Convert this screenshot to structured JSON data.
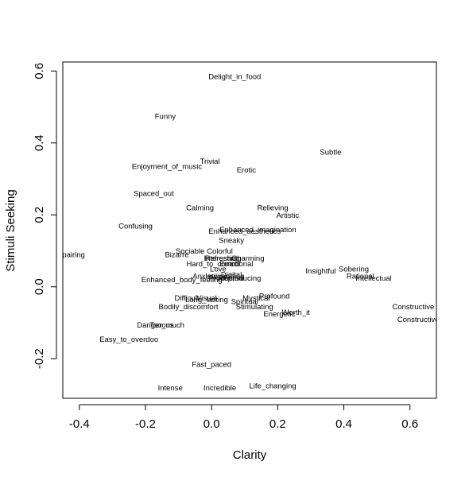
{
  "chart_data": {
    "type": "scatter",
    "title": "",
    "xlabel": "Clarity",
    "ylabel": "Stimuli Seeking",
    "xlim": [
      -0.45,
      0.68
    ],
    "ylim": [
      -0.31,
      0.625
    ],
    "xticks": [
      -0.4,
      -0.2,
      0.0,
      0.2,
      0.4,
      0.6
    ],
    "yticks": [
      -0.2,
      0.0,
      0.2,
      0.4,
      0.6
    ],
    "xtick_labels": [
      "-0.4",
      "-0.2",
      "0.0",
      "0.2",
      "0.4",
      "0.6"
    ],
    "ytick_labels": [
      "-0.2",
      "0.0",
      "0.2",
      "0.4",
      "0.6"
    ],
    "grid": false,
    "points": [
      {
        "label": "Delight_in_food",
        "x": 0.07,
        "y": 0.585
      },
      {
        "label": "Funny",
        "x": -0.14,
        "y": 0.475
      },
      {
        "label": "Subtle",
        "x": 0.36,
        "y": 0.375
      },
      {
        "label": "Trivial",
        "x": -0.005,
        "y": 0.35
      },
      {
        "label": "Enjoyment_of_music",
        "x": -0.135,
        "y": 0.335
      },
      {
        "label": "Erotic",
        "x": 0.105,
        "y": 0.325
      },
      {
        "label": "Spaced_out",
        "x": -0.175,
        "y": 0.26
      },
      {
        "label": "Calming",
        "x": -0.035,
        "y": 0.22
      },
      {
        "label": "Relieving",
        "x": 0.185,
        "y": 0.22
      },
      {
        "label": "Artistic",
        "x": 0.23,
        "y": 0.2
      },
      {
        "label": "Confusing",
        "x": -0.23,
        "y": 0.17
      },
      {
        "label": "Enhanced_imagination",
        "x": 0.14,
        "y": 0.16
      },
      {
        "label": "Enhanced_aesthetics",
        "x": 0.1,
        "y": 0.155
      },
      {
        "label": "Sneaky",
        "x": 0.06,
        "y": 0.13
      },
      {
        "label": "Sociable",
        "x": -0.065,
        "y": 0.1
      },
      {
        "label": "Colorful",
        "x": 0.025,
        "y": 0.1
      },
      {
        "label": "Bizarre",
        "x": -0.105,
        "y": 0.09
      },
      {
        "label": "Impairing",
        "x": -0.43,
        "y": 0.09
      },
      {
        "label": "Interesting",
        "x": 0.03,
        "y": 0.08
      },
      {
        "label": "Refreshing",
        "x": 0.035,
        "y": 0.08
      },
      {
        "label": "Charming",
        "x": 0.11,
        "y": 0.08
      },
      {
        "label": "Hard_to_control",
        "x": 0.005,
        "y": 0.065
      },
      {
        "label": "Emotional",
        "x": 0.075,
        "y": 0.065
      },
      {
        "label": "Love",
        "x": 0.02,
        "y": 0.05
      },
      {
        "label": "Insightful",
        "x": 0.33,
        "y": 0.045
      },
      {
        "label": "Sobering",
        "x": 0.43,
        "y": 0.05
      },
      {
        "label": "Rational",
        "x": 0.45,
        "y": 0.03
      },
      {
        "label": "Intellectual",
        "x": 0.49,
        "y": 0.025
      },
      {
        "label": "Digital",
        "x": 0.06,
        "y": 0.035
      },
      {
        "label": "Invigorating",
        "x": 0.04,
        "y": 0.03
      },
      {
        "label": "Anxiety",
        "x": -0.02,
        "y": 0.03
      },
      {
        "label": "Productive",
        "x": 0.045,
        "y": 0.025
      },
      {
        "label": "Reproducing",
        "x": 0.085,
        "y": 0.025
      },
      {
        "label": "Enhanced_body_feeling",
        "x": -0.09,
        "y": 0.02
      },
      {
        "label": "Difficult",
        "x": -0.075,
        "y": -0.03
      },
      {
        "label": "Visual",
        "x": -0.015,
        "y": -0.03
      },
      {
        "label": "Long_lasting",
        "x": -0.015,
        "y": -0.035
      },
      {
        "label": "Mystical",
        "x": 0.135,
        "y": -0.03
      },
      {
        "label": "Profound",
        "x": 0.19,
        "y": -0.025
      },
      {
        "label": "Spiritual",
        "x": 0.1,
        "y": -0.04
      },
      {
        "label": "Bodily_discomfort",
        "x": -0.07,
        "y": -0.055
      },
      {
        "label": "Stimulating",
        "x": 0.13,
        "y": -0.055
      },
      {
        "label": "Worth_it",
        "x": 0.255,
        "y": -0.07
      },
      {
        "label": "Energetic",
        "x": 0.205,
        "y": -0.075
      },
      {
        "label": "Constructive",
        "x": 0.61,
        "y": -0.055
      },
      {
        "label": "Constructive",
        "x": 0.625,
        "y": -0.09
      },
      {
        "label": "Dangerous",
        "x": -0.17,
        "y": -0.105
      },
      {
        "label": "Too_much",
        "x": -0.135,
        "y": -0.105
      },
      {
        "label": "Easy_to_overdoo",
        "x": -0.25,
        "y": -0.145
      },
      {
        "label": "Fast_paced",
        "x": 0.0,
        "y": -0.215
      },
      {
        "label": "Intense",
        "x": -0.125,
        "y": -0.28
      },
      {
        "label": "Incredible",
        "x": 0.025,
        "y": -0.28
      },
      {
        "label": "Life_changing",
        "x": 0.185,
        "y": -0.275
      }
    ]
  }
}
